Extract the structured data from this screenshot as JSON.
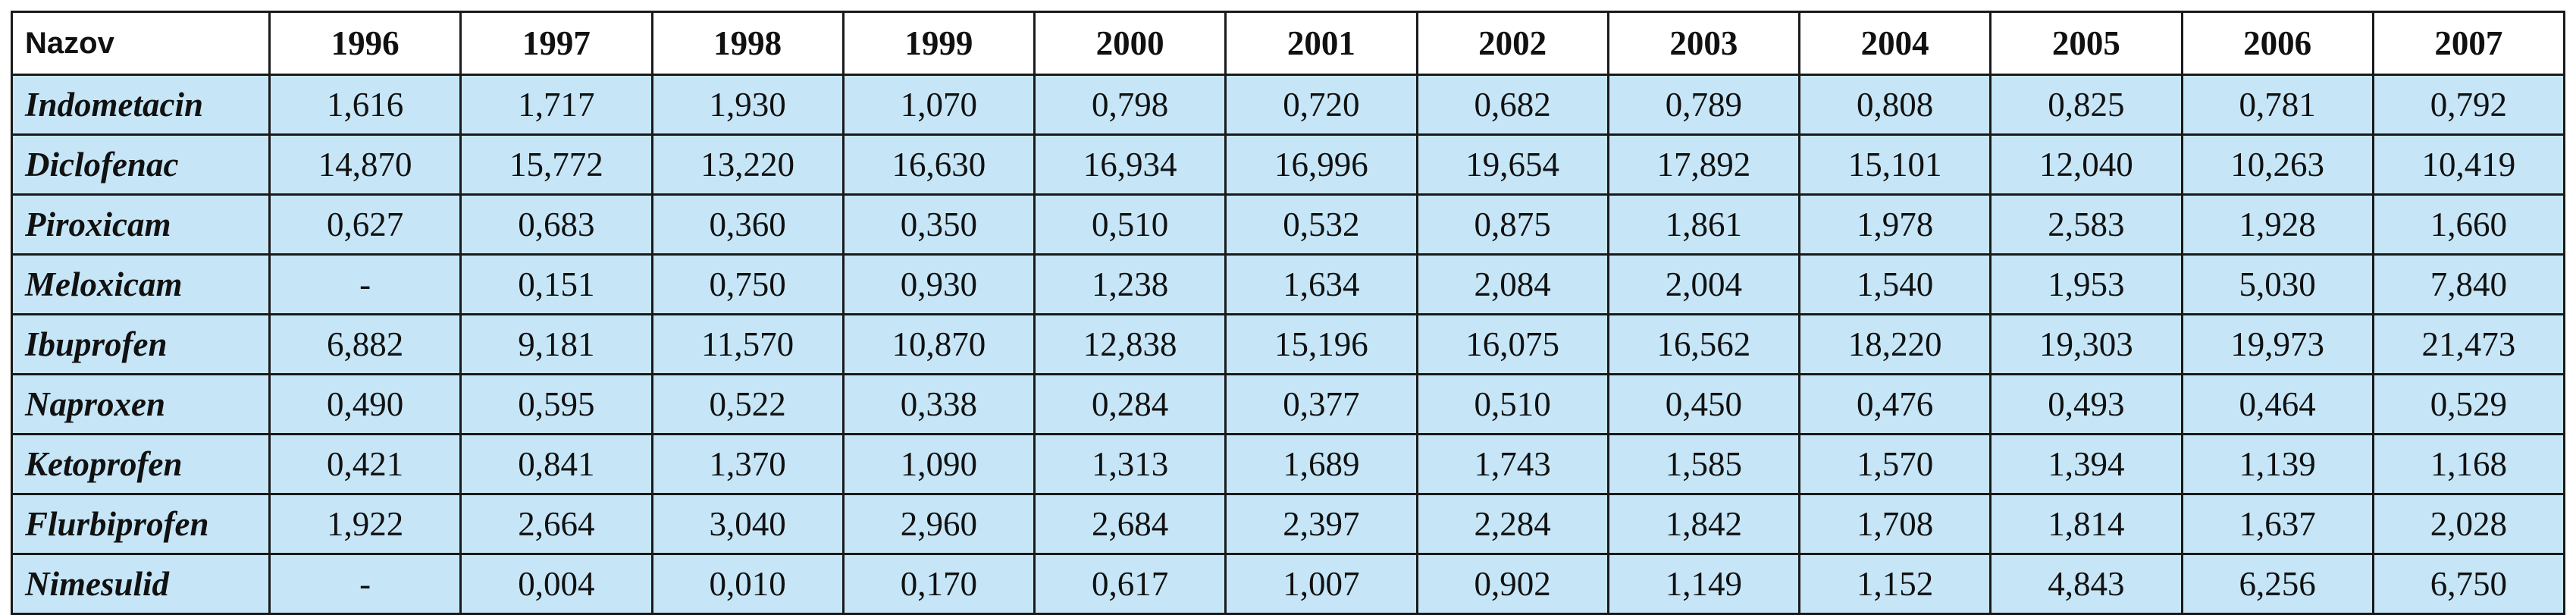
{
  "table": {
    "header": [
      "Nazov",
      "1996",
      "1997",
      "1998",
      "1999",
      "2000",
      "2001",
      "2002",
      "2003",
      "2004",
      "2005",
      "2006",
      "2007"
    ],
    "rows": [
      {
        "name": "Indometacin",
        "values": [
          "1,616",
          "1,717",
          "1,930",
          "1,070",
          "0,798",
          "0,720",
          "0,682",
          "0,789",
          "0,808",
          "0,825",
          "0,781",
          "0,792"
        ]
      },
      {
        "name": "Diclofenac",
        "values": [
          "14,870",
          "15,772",
          "13,220",
          "16,630",
          "16,934",
          "16,996",
          "19,654",
          "17,892",
          "15,101",
          "12,040",
          "10,263",
          "10,419"
        ]
      },
      {
        "name": "Piroxicam",
        "values": [
          "0,627",
          "0,683",
          "0,360",
          "0,350",
          "0,510",
          "0,532",
          "0,875",
          "1,861",
          "1,978",
          "2,583",
          "1,928",
          "1,660"
        ]
      },
      {
        "name": "Meloxicam",
        "values": [
          "-",
          "0,151",
          "0,750",
          "0,930",
          "1,238",
          "1,634",
          "2,084",
          "2,004",
          "1,540",
          "1,953",
          "5,030",
          "7,840"
        ]
      },
      {
        "name": "Ibuprofen",
        "values": [
          "6,882",
          "9,181",
          "11,570",
          "10,870",
          "12,838",
          "15,196",
          "16,075",
          "16,562",
          "18,220",
          "19,303",
          "19,973",
          "21,473"
        ]
      },
      {
        "name": "Naproxen",
        "values": [
          "0,490",
          "0,595",
          "0,522",
          "0,338",
          "0,284",
          "0,377",
          "0,510",
          "0,450",
          "0,476",
          "0,493",
          "0,464",
          "0,529"
        ]
      },
      {
        "name": "Ketoprofen",
        "values": [
          "0,421",
          "0,841",
          "1,370",
          "1,090",
          "1,313",
          "1,689",
          "1,743",
          "1,585",
          "1,570",
          "1,394",
          "1,139",
          "1,168"
        ]
      },
      {
        "name": "Flurbiprofen",
        "values": [
          "1,922",
          "2,664",
          "3,040",
          "2,960",
          "2,684",
          "2,397",
          "2,284",
          "1,842",
          "1,708",
          "1,814",
          "1,637",
          "2,028"
        ]
      },
      {
        "name": "Nimesulid",
        "values": [
          "-",
          "0,004",
          "0,010",
          "0,170",
          "0,617",
          "1,007",
          "0,902",
          "1,149",
          "1,152",
          "4,843",
          "6,256",
          "6,750"
        ]
      }
    ]
  },
  "colors": {
    "cell_background": "#c6e6f7",
    "header_background": "#ffffff",
    "border": "#1a1a1a"
  }
}
